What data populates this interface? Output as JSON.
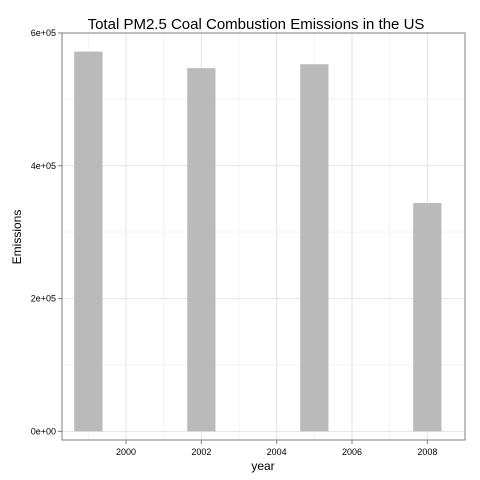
{
  "chart_data": {
    "type": "bar",
    "title": "Total PM2.5 Coal Combustion Emissions in the US",
    "xlabel": "year",
    "ylabel": "Emissions",
    "x": [
      1999,
      2002,
      2005,
      2008
    ],
    "values": [
      572000,
      547000,
      553000,
      344000
    ],
    "xlim": [
      1998.3,
      2009.0
    ],
    "ylim": [
      -13000,
      600000
    ],
    "x_ticks": [
      2000,
      2002,
      2004,
      2006,
      2008
    ],
    "x_tick_labels": [
      "2000",
      "2002",
      "2004",
      "2006",
      "2008"
    ],
    "y_ticks": [
      0,
      200000,
      400000,
      600000
    ],
    "y_tick_labels": [
      "0e+00",
      "2e+05",
      "4e+05",
      "6e+05"
    ],
    "bar_width_years": 0.75,
    "grid": true,
    "colors": {
      "bar": "#bababa",
      "grid_major": "#e3e3e3",
      "grid_minor": "#f3f3f3",
      "panel_border": "#7f7f7f",
      "background": "#ffffff"
    }
  }
}
